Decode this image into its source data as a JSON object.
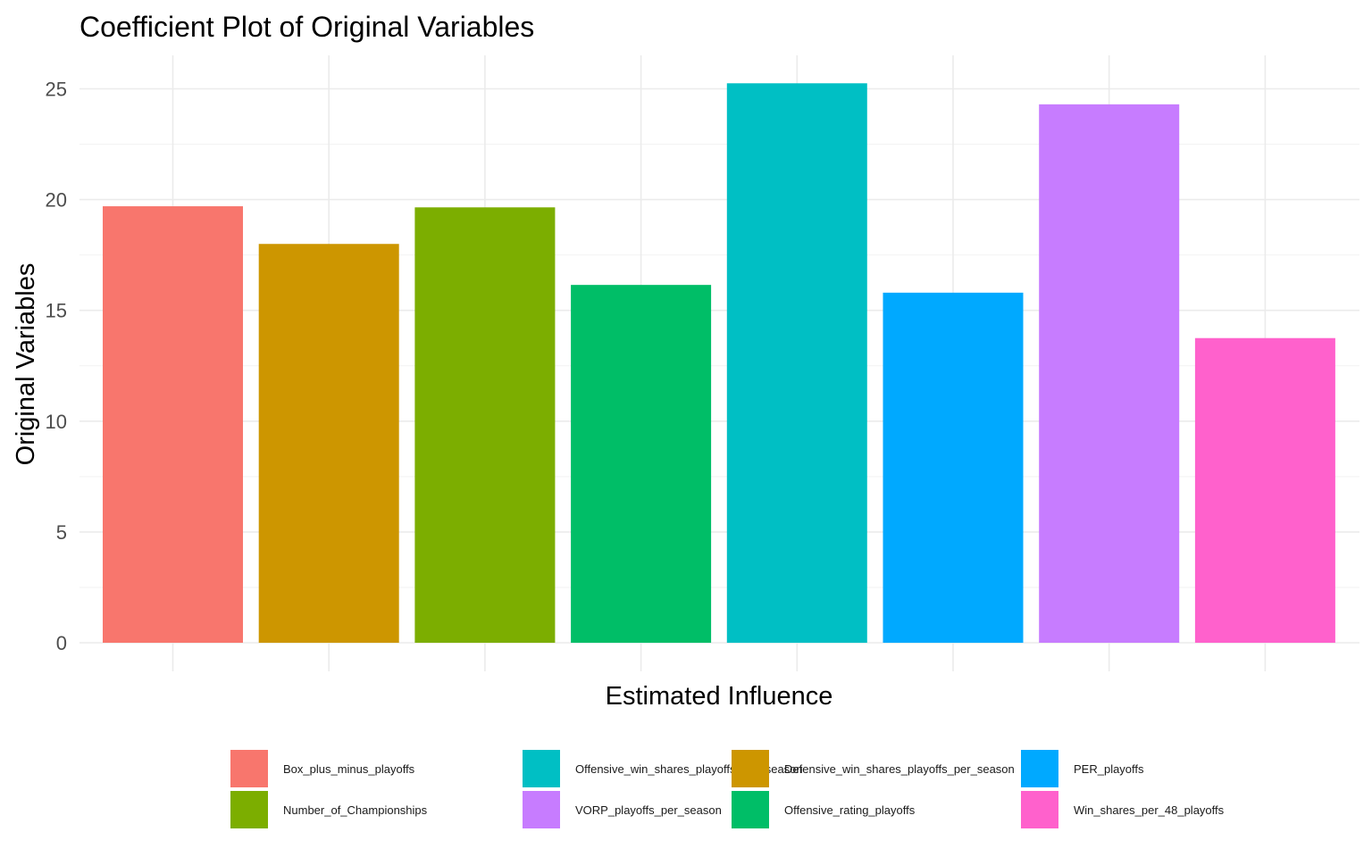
{
  "chart_data": {
    "type": "bar",
    "title": "Coefficient Plot of Original Variables",
    "xlabel": "Estimated Influence",
    "ylabel": "Original Variables",
    "ylim": [
      0,
      26.5
    ],
    "yticks": [
      0,
      5,
      10,
      15,
      20,
      25
    ],
    "grid": true,
    "legend_position": "bottom",
    "categories": [
      "Box_plus_minus_playoffs",
      "Defensive_win_shares_playoffs_per_season",
      "Number_of_Championships",
      "Offensive_rating_playoffs",
      "Offensive_win_shares_playoffs_per_season",
      "PER_playoffs",
      "VORP_playoffs_per_season",
      "Win_shares_per_48_playoffs"
    ],
    "values": [
      19.7,
      18.0,
      19.65,
      16.15,
      25.25,
      15.8,
      24.3,
      13.75
    ],
    "colors": [
      "#F8766D",
      "#CD9600",
      "#7CAE00",
      "#00BE67",
      "#00BFC4",
      "#00A9FF",
      "#C77CFF",
      "#FF61CC"
    ],
    "legend_order": [
      0,
      2,
      4,
      6,
      1,
      3,
      5,
      7
    ]
  }
}
